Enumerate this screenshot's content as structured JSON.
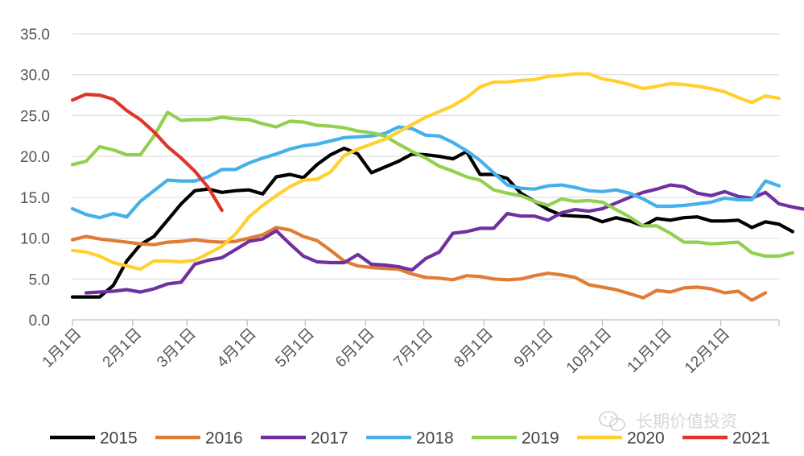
{
  "chart_data": {
    "type": "line",
    "title": "",
    "xlabel": "",
    "ylabel": "",
    "ylim": [
      0,
      35
    ],
    "xlim": [
      1,
      53
    ],
    "y_ticks": [
      "0.0",
      "5.0",
      "10.0",
      "15.0",
      "20.0",
      "25.0",
      "30.0",
      "35.0"
    ],
    "x_tick_labels": [
      {
        "label": "1月1日",
        "x": 1
      },
      {
        "label": "2月1日",
        "x": 5.43
      },
      {
        "label": "3月1日",
        "x": 9.43
      },
      {
        "label": "4月1日",
        "x": 13.86
      },
      {
        "label": "5月1日",
        "x": 18.14
      },
      {
        "label": "6月1日",
        "x": 22.57
      },
      {
        "label": "7月1日",
        "x": 26.86
      },
      {
        "label": "8月1日",
        "x": 31.29
      },
      {
        "label": "9月1日",
        "x": 35.71
      },
      {
        "label": "10月1日",
        "x": 40
      },
      {
        "label": "11月1日",
        "x": 44.43
      },
      {
        "label": "12月1日",
        "x": 48.71
      }
    ],
    "grid": true,
    "legend_position": "bottom",
    "series": [
      {
        "name": "2015",
        "color": "#000000",
        "x_start": 1,
        "values": [
          2.8,
          2.8,
          2.8,
          4.2,
          7.2,
          9.2,
          10.2,
          12.2,
          14.2,
          15.8,
          16.0,
          15.6,
          15.8,
          15.9,
          15.4,
          17.5,
          17.8,
          17.4,
          19.0,
          20.2,
          21.0,
          20.3,
          18.0,
          18.7,
          19.4,
          20.3,
          20.2,
          20.0,
          19.7,
          20.6,
          17.8,
          17.8,
          17.3,
          15.5,
          14.5,
          13.5,
          12.8,
          12.7,
          12.6,
          12.0,
          12.5,
          12.1,
          11.5,
          12.4,
          12.2,
          12.5,
          12.6,
          12.1,
          12.1,
          12.2,
          11.3,
          12.0,
          11.7,
          10.8
        ]
      },
      {
        "name": "2016",
        "color": "#e07c34",
        "x_start": 1,
        "values": [
          9.8,
          10.2,
          9.9,
          9.7,
          9.5,
          9.3,
          9.2,
          9.5,
          9.6,
          9.8,
          9.6,
          9.5,
          9.6,
          10.0,
          10.4,
          11.3,
          11.0,
          10.2,
          9.7,
          8.5,
          7.2,
          6.6,
          6.4,
          6.3,
          6.2,
          5.6,
          5.2,
          5.1,
          4.9,
          5.4,
          5.3,
          5.0,
          4.9,
          5.0,
          5.4,
          5.7,
          5.5,
          5.2,
          4.3,
          4.0,
          3.7,
          3.2,
          2.7,
          3.6,
          3.4,
          3.9,
          4.0,
          3.8,
          3.3,
          3.5,
          2.4,
          3.3
        ]
      },
      {
        "name": "2017",
        "color": "#7030a0",
        "x_start": 2,
        "values": [
          3.3,
          3.4,
          3.5,
          3.7,
          3.4,
          3.8,
          4.4,
          4.6,
          6.8,
          7.3,
          7.6,
          8.6,
          9.6,
          9.9,
          10.9,
          9.3,
          7.8,
          7.1,
          7.0,
          7.0,
          8.0,
          6.8,
          6.7,
          6.5,
          6.1,
          7.5,
          8.3,
          10.6,
          10.8,
          11.2,
          11.2,
          13.0,
          12.7,
          12.7,
          12.2,
          13.1,
          13.5,
          13.3,
          13.6,
          14.3,
          15.0,
          15.6,
          16.0,
          16.5,
          16.3,
          15.5,
          15.2,
          15.7,
          15.1,
          14.9,
          15.6,
          14.2,
          13.8,
          13.5
        ]
      },
      {
        "name": "2018",
        "color": "#45b1e8",
        "x_start": 1,
        "values": [
          13.6,
          12.9,
          12.5,
          13.0,
          12.6,
          14.5,
          15.8,
          17.1,
          17.0,
          17.0,
          17.5,
          18.4,
          18.4,
          19.2,
          19.8,
          20.3,
          20.9,
          21.3,
          21.5,
          21.9,
          22.3,
          22.4,
          22.5,
          22.8,
          23.6,
          23.4,
          22.6,
          22.5,
          21.7,
          20.7,
          19.5,
          18.0,
          16.5,
          16.1,
          16.0,
          16.4,
          16.5,
          16.2,
          15.8,
          15.7,
          15.9,
          15.5,
          14.8,
          13.9,
          13.9,
          14.0,
          14.2,
          14.4,
          14.9,
          14.7,
          14.7,
          17.0,
          16.4
        ]
      },
      {
        "name": "2019",
        "color": "#92d050",
        "x_start": 1,
        "values": [
          19.0,
          19.4,
          21.2,
          20.8,
          20.2,
          20.2,
          22.5,
          25.4,
          24.4,
          24.5,
          24.5,
          24.8,
          24.6,
          24.5,
          24.0,
          23.6,
          24.3,
          24.2,
          23.8,
          23.7,
          23.5,
          23.1,
          22.9,
          22.5,
          21.5,
          20.6,
          19.8,
          18.8,
          18.2,
          17.5,
          17.1,
          15.9,
          15.5,
          15.2,
          14.5,
          14.0,
          14.8,
          14.5,
          14.6,
          14.4,
          13.5,
          12.6,
          11.5,
          11.5,
          10.6,
          9.5,
          9.5,
          9.3,
          9.4,
          9.5,
          8.2,
          7.8,
          7.8,
          8.2
        ]
      },
      {
        "name": "2020",
        "color": "#ffd030",
        "x_start": 1,
        "values": [
          8.5,
          8.3,
          7.8,
          7.0,
          6.6,
          6.2,
          7.2,
          7.2,
          7.1,
          7.3,
          8.1,
          9.0,
          10.5,
          12.6,
          14.0,
          15.2,
          16.3,
          17.1,
          17.2,
          18.1,
          20.1,
          20.9,
          21.5,
          22.1,
          23.0,
          23.9,
          24.8,
          25.5,
          26.2,
          27.2,
          28.5,
          29.1,
          29.1,
          29.3,
          29.4,
          29.8,
          29.9,
          30.1,
          30.1,
          29.5,
          29.2,
          28.8,
          28.3,
          28.6,
          28.9,
          28.8,
          28.6,
          28.3,
          27.9,
          27.2,
          26.6,
          27.4,
          27.1
        ]
      },
      {
        "name": "2021",
        "color": "#e0352b",
        "x_start": 1,
        "values": [
          26.9,
          27.6,
          27.5,
          27.0,
          25.6,
          24.5,
          23.0,
          21.2,
          19.8,
          18.2,
          16.2,
          13.4
        ]
      }
    ]
  },
  "watermark": {
    "text": "长期价值投资"
  }
}
